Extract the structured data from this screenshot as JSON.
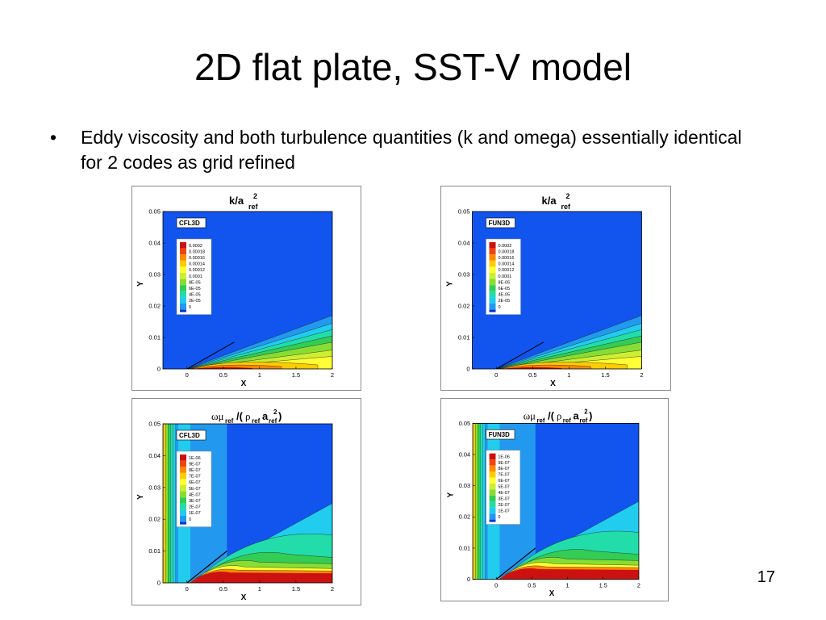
{
  "slide": {
    "title": "2D flat plate, SST-V model",
    "bullets": [
      {
        "text": "Eddy viscosity and both turbulence quantities (k and omega) essentially identical for 2 codes as grid refined"
      }
    ],
    "page_number": "17"
  },
  "plots": [
    {
      "id": "k-cfl3d",
      "type": "k",
      "code_label": "CFL3D",
      "legend": [
        "0.0002",
        "0.00018",
        "0.00016",
        "0.00014",
        "0.00012",
        "0.0001",
        "8E-05",
        "6E-05",
        "4E-05",
        "2E-05",
        "0"
      ],
      "x_ticks": [
        "0",
        "0.5",
        "1",
        "1.5",
        "2"
      ],
      "y_ticks": [
        "0",
        "0.01",
        "0.02",
        "0.03",
        "0.04",
        "0.05"
      ],
      "xlabel": "X",
      "ylabel": "Y"
    },
    {
      "id": "k-fun3d",
      "type": "k",
      "code_label": "FUN3D",
      "legend": [
        "0.0002",
        "0.00018",
        "0.00016",
        "0.00014",
        "0.00012",
        "0.0001",
        "8E-05",
        "6E-05",
        "4E-05",
        "2E-05",
        "0"
      ],
      "x_ticks": [
        "0",
        "0.5",
        "1",
        "1.5",
        "2"
      ],
      "y_ticks": [
        "0",
        "0.01",
        "0.02",
        "0.03",
        "0.04",
        "0.05"
      ],
      "xlabel": "X",
      "ylabel": "Y"
    },
    {
      "id": "omega-cfl3d",
      "type": "omega",
      "code_label": "CFL3D",
      "legend": [
        "1E-06",
        "9E-07",
        "8E-07",
        "7E-07",
        "6E-07",
        "5E-07",
        "4E-07",
        "3E-07",
        "2E-07",
        "1E-07",
        "0"
      ],
      "x_ticks": [
        "0",
        "0.5",
        "1",
        "1.5",
        "2"
      ],
      "y_ticks": [
        "0",
        "0.01",
        "0.02",
        "0.03",
        "0.04",
        "0.05"
      ],
      "xlabel": "X",
      "ylabel": "Y"
    },
    {
      "id": "omega-fun3d",
      "type": "omega",
      "code_label": "FUN3D",
      "legend": [
        "1E-06",
        "9E-07",
        "8E-07",
        "7E-07",
        "6E-07",
        "5E-07",
        "4E-07",
        "3E-07",
        "2E-07",
        "1E-07",
        "0"
      ],
      "x_ticks": [
        "0",
        "0.5",
        "1",
        "1.5",
        "2"
      ],
      "y_ticks": [
        "0",
        "0.01",
        "0.02",
        "0.03",
        "0.04",
        "0.05"
      ],
      "xlabel": "X",
      "ylabel": "Y"
    }
  ],
  "colormap": [
    "#cc1111",
    "#ee4411",
    "#ff8800",
    "#ffcc00",
    "#ffff33",
    "#ccee33",
    "#88dd33",
    "#33cc55",
    "#22ddaa",
    "#22ccee",
    "#2299ee",
    "#1155ee",
    "#0033cc"
  ]
}
